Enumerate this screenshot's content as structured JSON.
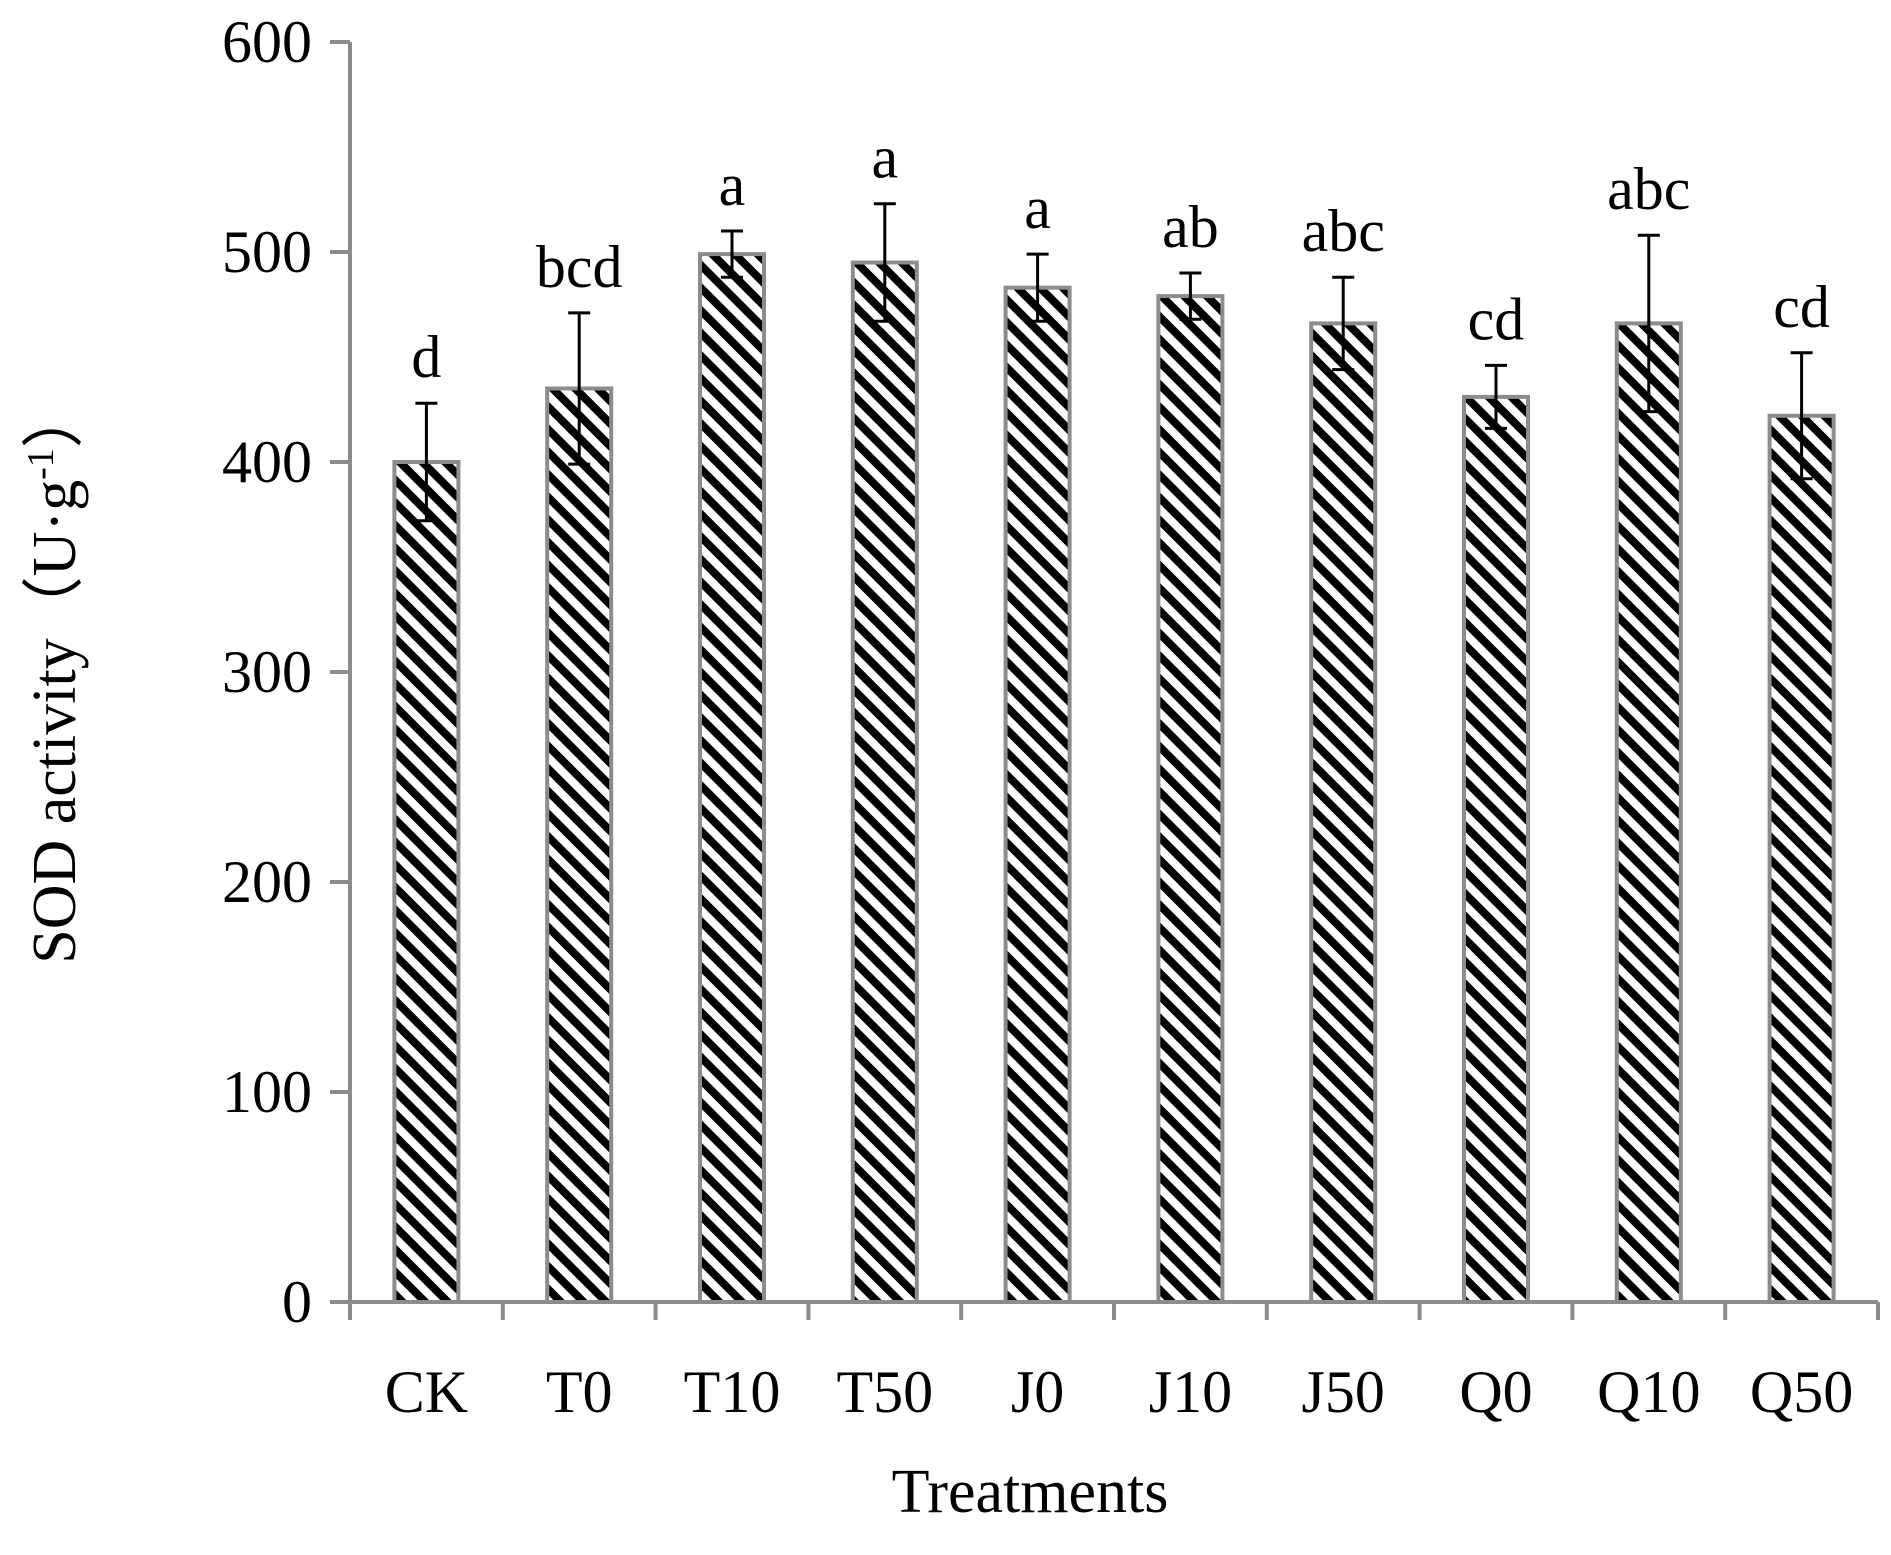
{
  "chart_data": {
    "type": "bar",
    "title": "",
    "xlabel": "Treatments",
    "ylabel": "SOD activity（U·g",
    "ylabel_superscript": "-1",
    "ylabel_close": "）",
    "ylim": [
      0,
      600
    ],
    "yticks": [
      "0",
      "100",
      "200",
      "300",
      "400",
      "500",
      "600"
    ],
    "ytick_values": [
      0,
      100,
      200,
      300,
      400,
      500,
      600
    ],
    "categories": [
      "CK",
      "T0",
      "T10",
      "T50",
      "J0",
      "J10",
      "J50",
      "Q0",
      "Q10",
      "Q50"
    ],
    "values": [
      400,
      435,
      499,
      495,
      483,
      479,
      466,
      431,
      466,
      422
    ],
    "errors": [
      28,
      36,
      11,
      28,
      16,
      11,
      22,
      15,
      42,
      30
    ],
    "significance_letters": [
      "d",
      "bcd",
      "a",
      "a",
      "a",
      "ab",
      "abc",
      "cd",
      "abc",
      "cd"
    ],
    "grid": false,
    "legend": "none",
    "bar_fill": "diagonal black-and-white stripes",
    "colors": {
      "axis": "#8c8c8c",
      "bar_outline": "#8c8c8c",
      "stripe_dark": "#000000",
      "stripe_light": "#ffffff",
      "text": "#000000"
    }
  }
}
